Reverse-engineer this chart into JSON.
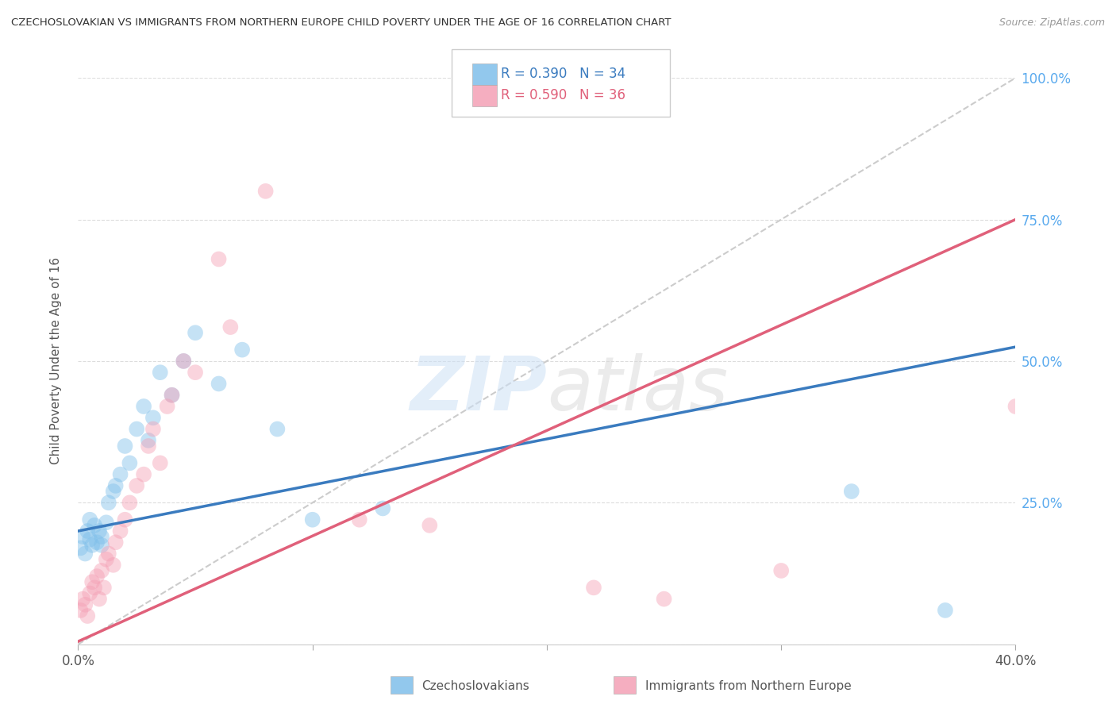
{
  "title": "CZECHOSLOVAKIAN VS IMMIGRANTS FROM NORTHERN EUROPE CHILD POVERTY UNDER THE AGE OF 16 CORRELATION CHART",
  "source": "Source: ZipAtlas.com",
  "ylabel": "Child Poverty Under the Age of 16",
  "xlim": [
    0.0,
    0.4
  ],
  "ylim": [
    0.0,
    1.0
  ],
  "yticks": [
    0.0,
    0.25,
    0.5,
    0.75,
    1.0
  ],
  "ytick_labels": [
    "",
    "25.0%",
    "50.0%",
    "75.0%",
    "100.0%"
  ],
  "xticks": [
    0.0,
    0.1,
    0.2,
    0.3,
    0.4
  ],
  "xtick_labels": [
    "0.0%",
    "",
    "",
    "",
    "40.0%"
  ],
  "blue_color": "#7fbfea",
  "pink_color": "#f4a0b5",
  "blue_line_color": "#3a7bbf",
  "pink_line_color": "#e0607a",
  "right_axis_color": "#5aaaee",
  "legend_R_blue": "R = 0.390",
  "legend_N_blue": "N = 34",
  "legend_R_pink": "R = 0.590",
  "legend_N_pink": "N = 36",
  "legend_label_blue": "Czechoslovakians",
  "legend_label_pink": "Immigrants from Northern Europe",
  "blue_scatter_x": [
    0.001,
    0.002,
    0.003,
    0.004,
    0.005,
    0.005,
    0.006,
    0.007,
    0.008,
    0.009,
    0.01,
    0.01,
    0.012,
    0.013,
    0.015,
    0.016,
    0.018,
    0.02,
    0.022,
    0.025,
    0.028,
    0.03,
    0.032,
    0.035,
    0.04,
    0.045,
    0.05,
    0.06,
    0.07,
    0.085,
    0.1,
    0.13,
    0.33,
    0.37
  ],
  "blue_scatter_y": [
    0.17,
    0.19,
    0.16,
    0.2,
    0.185,
    0.22,
    0.175,
    0.21,
    0.18,
    0.2,
    0.175,
    0.19,
    0.215,
    0.25,
    0.27,
    0.28,
    0.3,
    0.35,
    0.32,
    0.38,
    0.42,
    0.36,
    0.4,
    0.48,
    0.44,
    0.5,
    0.55,
    0.46,
    0.52,
    0.38,
    0.22,
    0.24,
    0.27,
    0.06
  ],
  "pink_scatter_x": [
    0.001,
    0.002,
    0.003,
    0.004,
    0.005,
    0.006,
    0.007,
    0.008,
    0.009,
    0.01,
    0.011,
    0.012,
    0.013,
    0.015,
    0.016,
    0.018,
    0.02,
    0.022,
    0.025,
    0.028,
    0.03,
    0.032,
    0.035,
    0.038,
    0.04,
    0.045,
    0.05,
    0.06,
    0.065,
    0.08,
    0.12,
    0.15,
    0.22,
    0.25,
    0.3,
    0.4
  ],
  "pink_scatter_y": [
    0.06,
    0.08,
    0.07,
    0.05,
    0.09,
    0.11,
    0.1,
    0.12,
    0.08,
    0.13,
    0.1,
    0.15,
    0.16,
    0.14,
    0.18,
    0.2,
    0.22,
    0.25,
    0.28,
    0.3,
    0.35,
    0.38,
    0.32,
    0.42,
    0.44,
    0.5,
    0.48,
    0.68,
    0.56,
    0.8,
    0.22,
    0.21,
    0.1,
    0.08,
    0.13,
    0.42
  ],
  "blue_line_x0": 0.0,
  "blue_line_x1": 0.4,
  "blue_line_y0": 0.2,
  "blue_line_y1": 0.525,
  "pink_line_x0": 0.0,
  "pink_line_x1": 0.4,
  "pink_line_y0": 0.005,
  "pink_line_y1": 0.75,
  "ref_line_x0": 0.0,
  "ref_line_x1": 0.4,
  "ref_line_y0": 0.0,
  "ref_line_y1": 1.0,
  "marker_size": 200,
  "marker_alpha": 0.45,
  "background_color": "#ffffff",
  "grid_color": "#dddddd"
}
